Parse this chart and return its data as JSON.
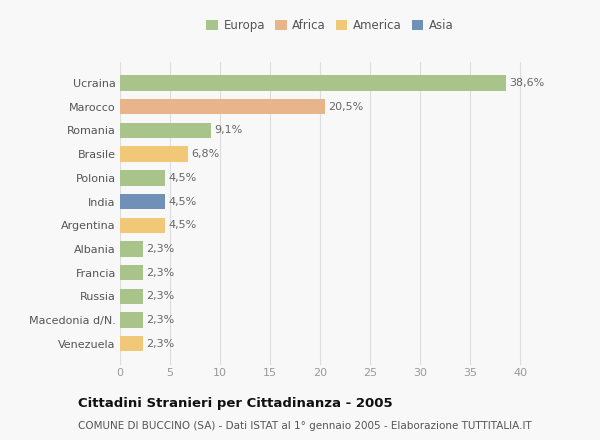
{
  "countries": [
    "Ucraina",
    "Marocco",
    "Romania",
    "Brasile",
    "Polonia",
    "India",
    "Argentina",
    "Albania",
    "Francia",
    "Russia",
    "Macedonia d/N.",
    "Venezuela"
  ],
  "values": [
    38.6,
    20.5,
    9.1,
    6.8,
    4.5,
    4.5,
    4.5,
    2.3,
    2.3,
    2.3,
    2.3,
    2.3
  ],
  "labels": [
    "38,6%",
    "20,5%",
    "9,1%",
    "6,8%",
    "4,5%",
    "4,5%",
    "4,5%",
    "2,3%",
    "2,3%",
    "2,3%",
    "2,3%",
    "2,3%"
  ],
  "colors": [
    "#a8c48a",
    "#e8b48a",
    "#a8c48a",
    "#f0c878",
    "#a8c48a",
    "#7090b8",
    "#f0c878",
    "#a8c48a",
    "#a8c48a",
    "#a8c48a",
    "#a8c48a",
    "#f0c878"
  ],
  "legend": {
    "Europa": "#a8c48a",
    "Africa": "#e8b48a",
    "America": "#f0c878",
    "Asia": "#7090b8"
  },
  "xlim": [
    0,
    42
  ],
  "xticks": [
    0,
    5,
    10,
    15,
    20,
    25,
    30,
    35,
    40
  ],
  "title": "Cittadini Stranieri per Cittadinanza - 2005",
  "subtitle": "COMUNE DI BUCCINO (SA) - Dati ISTAT al 1° gennaio 2005 - Elaborazione TUTTITALIA.IT",
  "bg_color": "#f8f8f8",
  "grid_color": "#dddddd",
  "bar_height": 0.65,
  "label_fontsize": 8,
  "tick_fontsize": 8,
  "legend_fontsize": 8.5,
  "title_fontsize": 9.5,
  "subtitle_fontsize": 7.5
}
